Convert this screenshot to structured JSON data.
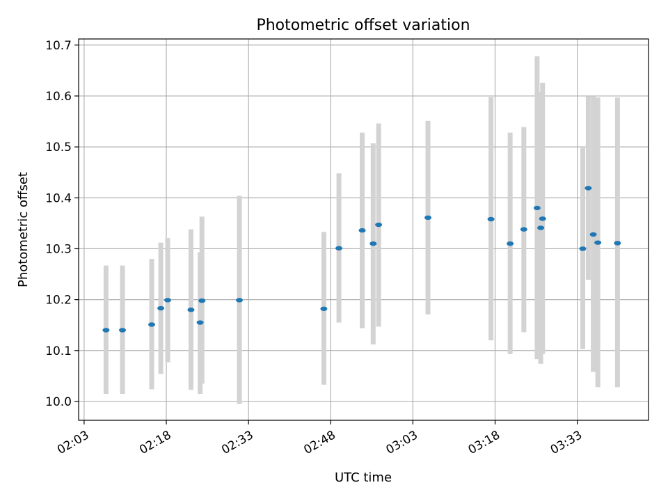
{
  "chart_data": {
    "type": "scatter",
    "title": "Photometric offset variation",
    "xlabel": "UTC time",
    "ylabel": "Photometric offset",
    "grid": true,
    "colors": {
      "point": "#1f77b4",
      "errorbar": "#d3d3d3",
      "grid": "#b0b0b0",
      "axis": "#000000"
    },
    "x_axis": {
      "ticks": [
        "02:03",
        "02:18",
        "02:33",
        "02:48",
        "03:03",
        "03:18",
        "03:33"
      ],
      "range": [
        "02:02",
        "03:46"
      ]
    },
    "y_axis": {
      "ticks": [
        "10.0",
        "10.1",
        "10.2",
        "10.3",
        "10.4",
        "10.5",
        "10.6",
        "10.7"
      ],
      "range": [
        9.963,
        10.712
      ]
    },
    "points": [
      {
        "x": "02:07:00",
        "y": 10.14,
        "err_low": 10.015,
        "err_high": 10.267
      },
      {
        "x": "02:10:00",
        "y": 10.14,
        "err_low": 10.015,
        "err_high": 10.267
      },
      {
        "x": "02:15:20",
        "y": 10.151,
        "err_low": 10.024,
        "err_high": 10.28
      },
      {
        "x": "02:17:00",
        "y": 10.183,
        "err_low": 10.054,
        "err_high": 10.312
      },
      {
        "x": "02:18:15",
        "y": 10.199,
        "err_low": 10.077,
        "err_high": 10.321
      },
      {
        "x": "02:22:30",
        "y": 10.18,
        "err_low": 10.023,
        "err_high": 10.338
      },
      {
        "x": "02:24:10",
        "y": 10.155,
        "err_low": 10.015,
        "err_high": 10.293
      },
      {
        "x": "02:24:30",
        "y": 10.198,
        "err_low": 10.035,
        "err_high": 10.363
      },
      {
        "x": "02:31:20",
        "y": 10.199,
        "err_low": 9.995,
        "err_high": 10.404
      },
      {
        "x": "02:46:45",
        "y": 10.182,
        "err_low": 10.033,
        "err_high": 10.333
      },
      {
        "x": "02:49:30",
        "y": 10.301,
        "err_low": 10.155,
        "err_high": 10.448
      },
      {
        "x": "02:53:45",
        "y": 10.336,
        "err_low": 10.144,
        "err_high": 10.528
      },
      {
        "x": "02:55:45",
        "y": 10.31,
        "err_low": 10.112,
        "err_high": 10.507
      },
      {
        "x": "02:56:45",
        "y": 10.347,
        "err_low": 10.147,
        "err_high": 10.546
      },
      {
        "x": "03:05:45",
        "y": 10.361,
        "err_low": 10.171,
        "err_high": 10.551
      },
      {
        "x": "03:17:15",
        "y": 10.358,
        "err_low": 10.12,
        "err_high": 10.598
      },
      {
        "x": "03:20:45",
        "y": 10.31,
        "err_low": 10.093,
        "err_high": 10.528
      },
      {
        "x": "03:23:15",
        "y": 10.338,
        "err_low": 10.136,
        "err_high": 10.539
      },
      {
        "x": "03:25:40",
        "y": 10.38,
        "err_low": 10.083,
        "err_high": 10.678
      },
      {
        "x": "03:26:20",
        "y": 10.341,
        "err_low": 10.074,
        "err_high": 10.608
      },
      {
        "x": "03:26:40",
        "y": 10.359,
        "err_low": 10.093,
        "err_high": 10.626
      },
      {
        "x": "03:34:00",
        "y": 10.3,
        "err_low": 10.103,
        "err_high": 10.498
      },
      {
        "x": "03:35:00",
        "y": 10.419,
        "err_low": 10.239,
        "err_high": 10.599
      },
      {
        "x": "03:35:55",
        "y": 10.328,
        "err_low": 10.058,
        "err_high": 10.599
      },
      {
        "x": "03:36:45",
        "y": 10.312,
        "err_low": 10.028,
        "err_high": 10.597
      },
      {
        "x": "03:40:20",
        "y": 10.311,
        "err_low": 10.028,
        "err_high": 10.597
      }
    ]
  }
}
